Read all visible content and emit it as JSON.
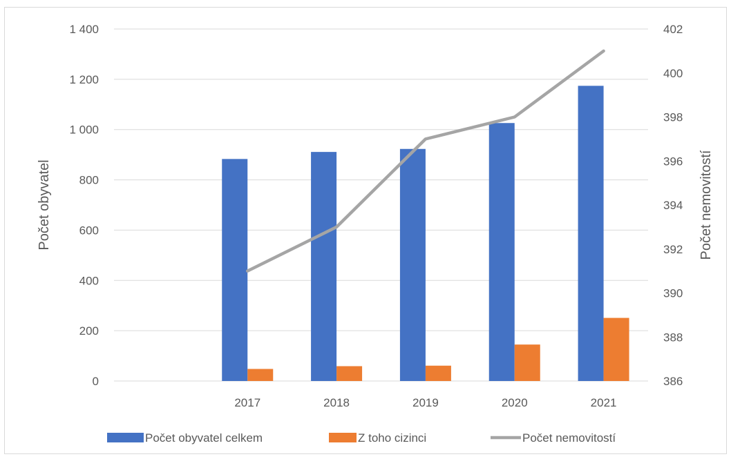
{
  "chart_data": {
    "type": "bar",
    "categories": [
      "",
      "2017",
      "2018",
      "2019",
      "2020",
      "2021"
    ],
    "series": [
      {
        "name": "Počet obyvatel celkem",
        "kind": "bar",
        "axis": "left",
        "color": "#4472C4",
        "values": [
          null,
          883,
          911,
          923,
          1026,
          1174
        ]
      },
      {
        "name": "Z toho cizinci",
        "kind": "bar",
        "axis": "left",
        "color": "#ED7D31",
        "values": [
          null,
          48,
          59,
          61,
          145,
          251
        ]
      },
      {
        "name": "Počet nemovitostí",
        "kind": "line",
        "axis": "right",
        "color": "#A5A5A5",
        "values": [
          null,
          391,
          393,
          397,
          398,
          401
        ]
      }
    ],
    "ylabel": "Počet obyvatel",
    "y2label": "Počet nemovitostí",
    "ylim": [
      0,
      1400
    ],
    "y2lim": [
      386,
      402
    ],
    "yticks": [
      0,
      200,
      400,
      600,
      800,
      1000,
      1200,
      1400
    ],
    "ytick_labels": [
      "0",
      "200",
      "400",
      "600",
      "800",
      "1 000",
      "1 200",
      "1 400"
    ],
    "y2ticks": [
      386,
      388,
      390,
      392,
      394,
      396,
      398,
      400,
      402
    ],
    "y2tick_labels": [
      "386",
      "388",
      "390",
      "392",
      "394",
      "396",
      "398",
      "400",
      "402"
    ],
    "grid": true,
    "legend": "bottom"
  }
}
